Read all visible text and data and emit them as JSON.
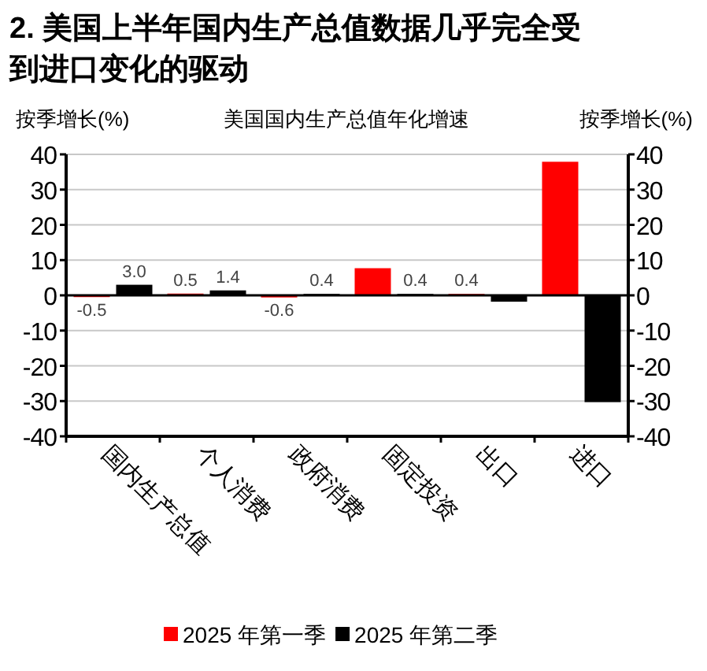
{
  "chart_data": {
    "type": "bar",
    "title": "2. 美国上半年国内生产总值数据几乎完全受到进口变化的驱动",
    "subtitle": "美国国内生产总值年化增速",
    "ylabel": "按季增长(%)",
    "y2label": "按季增长(%)",
    "categories": [
      "国内生产总值",
      "个人消费",
      "政府消费",
      "固定投资",
      "出口",
      "进口"
    ],
    "series": [
      {
        "name": "2025 年第一季",
        "color": "#ff0000",
        "values": [
          -0.5,
          0.5,
          -0.6,
          7.7,
          0.4,
          37.9
        ],
        "value_labels": [
          "-0.5",
          "0.5",
          "-0.6",
          null,
          "0.4",
          null
        ]
      },
      {
        "name": "2025 年第二季",
        "color": "#000000",
        "values": [
          3.0,
          1.4,
          0.4,
          0.4,
          -1.8,
          -30.3
        ],
        "value_labels": [
          "3.0",
          "1.4",
          "0.4",
          "0.4",
          null,
          null
        ]
      }
    ],
    "ylim": [
      -40,
      40
    ],
    "yticks": [
      -40,
      -30,
      -20,
      -10,
      0,
      10,
      20,
      30,
      40
    ],
    "y2lim": [
      -40,
      40
    ],
    "y2ticks": [
      -40,
      -30,
      -20,
      -10,
      0,
      10,
      20,
      30,
      40
    ],
    "grid": "y",
    "legend": "bottom"
  }
}
